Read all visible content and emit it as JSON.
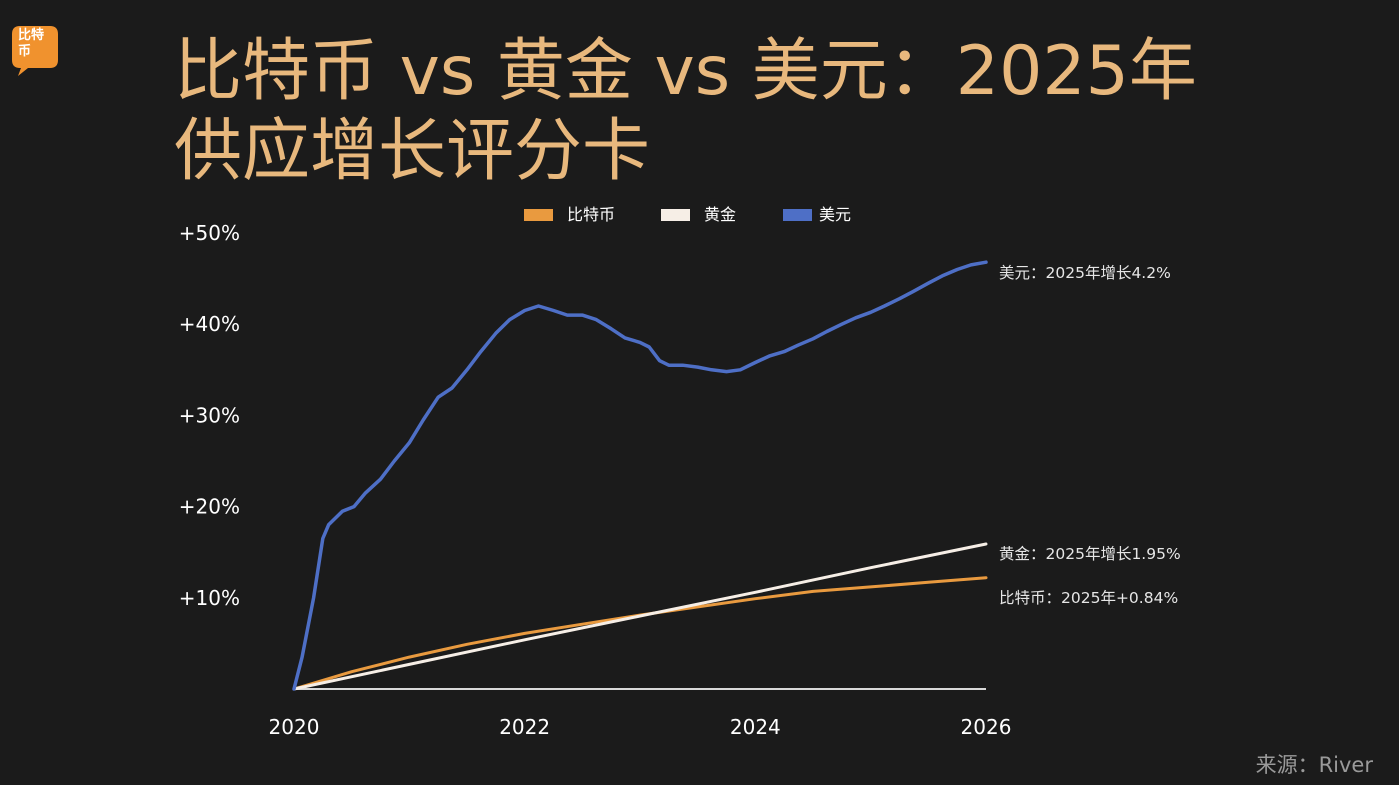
{
  "logo": {
    "text": "比特币",
    "color": "#f0922e"
  },
  "title": {
    "line1": "比特币 vs 黄金 vs 美元：2025年",
    "line2": "供应增长评分卡"
  },
  "source": "来源：River",
  "colors": {
    "background": "#1b1b1b",
    "title": "#e8b87d",
    "axis_text": "#ffffff",
    "baseline": "#d9d9d9"
  },
  "chart_data": {
    "type": "line",
    "title": "比特币 vs 黄金 vs 美元：2025年供应增长评分卡",
    "xlabel": "",
    "ylabel": "",
    "xlim": [
      2020,
      2026
    ],
    "ylim": [
      0,
      50
    ],
    "x_ticks": [
      "2020",
      "2022",
      "2024",
      "2026"
    ],
    "y_ticks": [
      "+10%",
      "+20%",
      "+30%",
      "+40%",
      "+50%"
    ],
    "grid": false,
    "legend": "top-center",
    "series": [
      {
        "name": "比特币",
        "color": "#e99a3f",
        "end_label": "比特币：2025年+0.84%",
        "x": [
          2020,
          2020.5,
          2021,
          2021.5,
          2022,
          2022.5,
          2023,
          2023.5,
          2024,
          2024.5,
          2025,
          2025.5,
          2026
        ],
        "y": [
          0,
          1.9,
          3.5,
          4.9,
          6.1,
          7.1,
          8.1,
          9.0,
          9.9,
          10.7,
          11.2,
          11.7,
          12.2
        ]
      },
      {
        "name": "黄金",
        "color": "#f6eee6",
        "end_label": "黄金：2025年增长1.95%",
        "x": [
          2020,
          2021,
          2022,
          2023,
          2024,
          2025,
          2026
        ],
        "y": [
          0,
          2.7,
          5.4,
          8.0,
          10.6,
          13.3,
          15.9
        ]
      },
      {
        "name": "美元",
        "color": "#4e6fc6",
        "end_label": "美元：2025年增长4.2%",
        "x": [
          2020,
          2020.07,
          2020.17,
          2020.25,
          2020.3,
          2020.42,
          2020.52,
          2020.62,
          2020.75,
          2020.87,
          2021,
          2021.12,
          2021.25,
          2021.37,
          2021.5,
          2021.62,
          2021.75,
          2021.87,
          2022,
          2022.12,
          2022.25,
          2022.37,
          2022.5,
          2022.62,
          2022.75,
          2022.87,
          2023,
          2023.08,
          2023.17,
          2023.25,
          2023.37,
          2023.5,
          2023.62,
          2023.75,
          2023.87,
          2024,
          2024.12,
          2024.25,
          2024.37,
          2024.5,
          2024.62,
          2024.75,
          2024.87,
          2025,
          2025.12,
          2025.25,
          2025.37,
          2025.5,
          2025.62,
          2025.75,
          2025.87,
          2026
        ],
        "y": [
          0,
          3.5,
          10.0,
          16.5,
          18.0,
          19.5,
          20.0,
          21.5,
          23.0,
          25.0,
          27.0,
          29.5,
          32.0,
          33.0,
          35.0,
          37.0,
          39.0,
          40.5,
          41.5,
          42.0,
          41.5,
          41.0,
          41.0,
          40.5,
          39.5,
          38.5,
          38.0,
          37.5,
          36.0,
          35.5,
          35.5,
          35.3,
          35.0,
          34.8,
          35.0,
          35.8,
          36.5,
          37.0,
          37.7,
          38.4,
          39.2,
          40.0,
          40.7,
          41.3,
          42.0,
          42.8,
          43.6,
          44.5,
          45.3,
          46.0,
          46.5,
          46.8
        ]
      }
    ]
  }
}
